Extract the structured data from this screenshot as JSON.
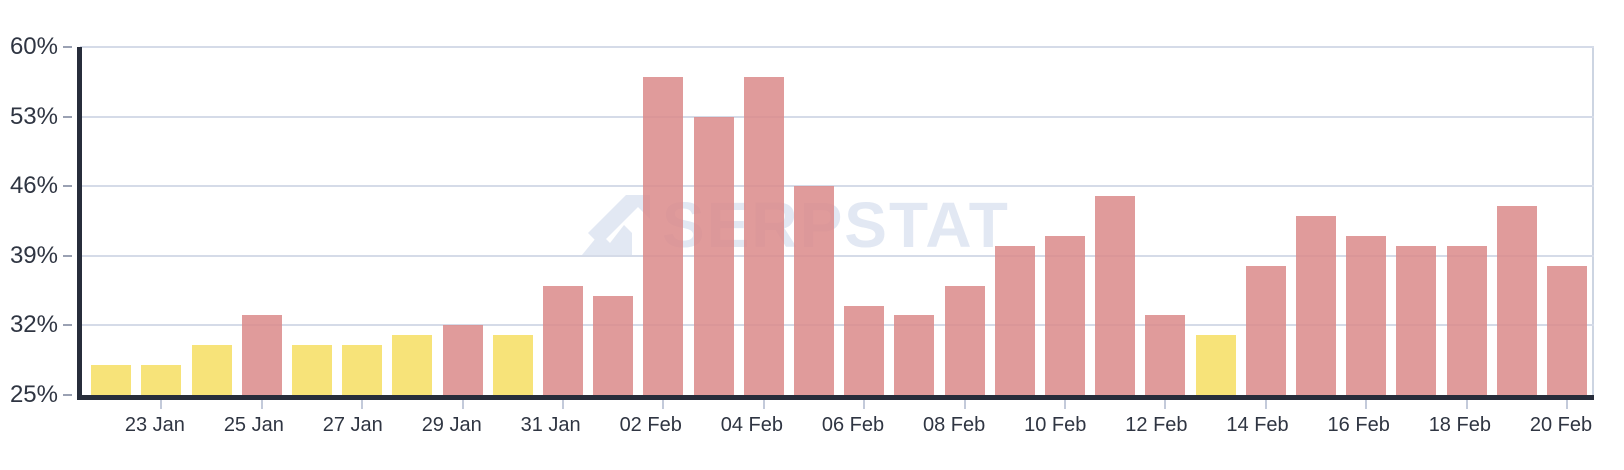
{
  "chart_data": {
    "type": "bar",
    "title": "",
    "xlabel": "",
    "ylabel": "",
    "ylim": [
      25,
      60
    ],
    "y_tick_labels": [
      "60%",
      "53%",
      "46%",
      "39%",
      "32%",
      "25%"
    ],
    "grid": "horizontal",
    "legend": "none",
    "categories": [
      "22 Jan",
      "23 Jan",
      "24 Jan",
      "25 Jan",
      "26 Jan",
      "27 Jan",
      "28 Jan",
      "29 Jan",
      "30 Jan",
      "31 Jan",
      "01 Feb",
      "02 Feb",
      "03 Feb",
      "04 Feb",
      "05 Feb",
      "06 Feb",
      "07 Feb",
      "08 Feb",
      "09 Feb",
      "10 Feb",
      "11 Feb",
      "12 Feb",
      "13 Feb",
      "14 Feb",
      "15 Feb",
      "16 Feb",
      "17 Feb",
      "18 Feb",
      "19 Feb",
      "20 Feb"
    ],
    "values": [
      28,
      28,
      30,
      33,
      30,
      30,
      31,
      32,
      31,
      36,
      35,
      57,
      53,
      57,
      46,
      34,
      33,
      36,
      40,
      41,
      45,
      33,
      31,
      38,
      43,
      41,
      40,
      40,
      44,
      38
    ],
    "bar_colors": [
      "yellow",
      "yellow",
      "yellow",
      "red",
      "yellow",
      "yellow",
      "yellow",
      "red",
      "yellow",
      "red",
      "red",
      "red",
      "red",
      "red",
      "red",
      "red",
      "red",
      "red",
      "red",
      "red",
      "red",
      "red",
      "yellow",
      "red",
      "red",
      "red",
      "red",
      "red",
      "red",
      "red"
    ],
    "x_tick_labels": [
      "23 Jan",
      "25 Jan",
      "27 Jan",
      "29 Jan",
      "31 Jan",
      "02 Feb",
      "04 Feb",
      "06 Feb",
      "08 Feb",
      "10 Feb",
      "12 Feb",
      "14 Feb",
      "16 Feb",
      "18 Feb",
      "20 Feb"
    ],
    "tick_start_index": 1,
    "tick_every": 2
  },
  "watermark": {
    "text": "SERPSTAT",
    "icon": "serpstat-arrow-logo"
  },
  "colors": {
    "bar_red": "rgba(218,137,137,0.85)",
    "bar_yellow": "rgba(246,222,98,0.85)",
    "gridline": "#D5DBE8",
    "right_border": "#CDD5E2",
    "axis": "#272D3B",
    "x_tick": "#C3CADA",
    "y_tick": "#9AA1B3",
    "label_text": "#2F3542",
    "watermark": "#E2E8F3"
  }
}
